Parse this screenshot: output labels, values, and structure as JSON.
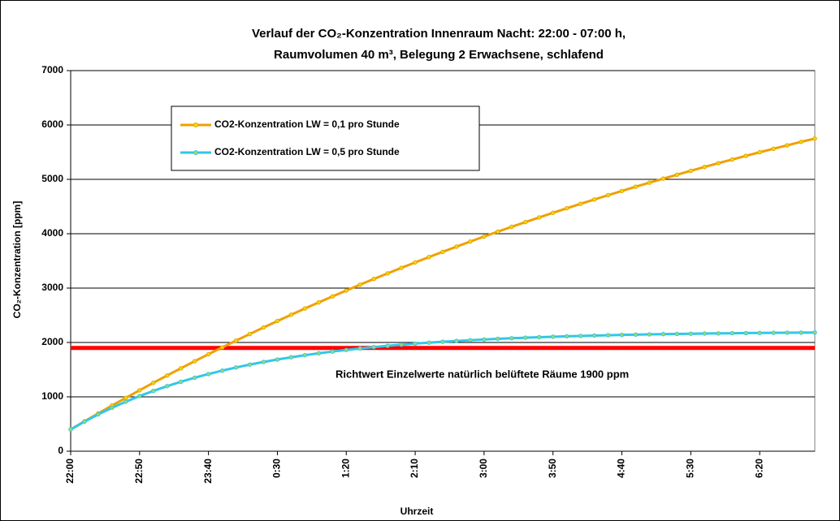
{
  "chart_data": {
    "type": "line",
    "title_lines": [
      "Verlauf der CO₂-Konzentration Innenraum Nacht: 22:00 - 07:00 h,",
      "Raumvolumen 40 m³, Belegung 2 Erwachsene, schlafend"
    ],
    "x_label": "Uhrzeit",
    "y_label": "CO₂-Konzentration [ppm]",
    "categories": [
      "22:00",
      null,
      null,
      null,
      null,
      "22:50",
      null,
      null,
      null,
      null,
      "23:40",
      null,
      null,
      null,
      null,
      "0:30",
      null,
      null,
      null,
      null,
      "1:20",
      null,
      null,
      null,
      null,
      "2:10",
      null,
      null,
      null,
      null,
      "3:00",
      null,
      null,
      null,
      null,
      "3:50",
      null,
      null,
      null,
      null,
      "4:40",
      null,
      null,
      null,
      null,
      "5:30",
      null,
      null,
      null,
      null,
      "6:20",
      null,
      null,
      null,
      null
    ],
    "series": [
      {
        "name": "CO2-Konzentration LW = 0,1 pro Stunde",
        "color": "#f0a000",
        "marker_color": "#e8e000",
        "values": [
          400,
          549,
          696,
          840,
          981,
          1121,
          1258,
          1393,
          1525,
          1656,
          1784,
          1910,
          2034,
          2156,
          2276,
          2394,
          2510,
          2625,
          2737,
          2847,
          2956,
          3063,
          3168,
          3271,
          3372,
          3472,
          3571,
          3667,
          3762,
          3856,
          3948,
          4038,
          4127,
          4214,
          4300,
          4385,
          4468,
          4550,
          4630,
          4709,
          4787,
          4864,
          4939,
          5013,
          5085,
          5157,
          5228,
          5297,
          5365,
          5432,
          5498,
          5562,
          5626,
          5689,
          5750
        ]
      },
      {
        "name": "CO2-Konzentration LW = 0,5 pro Stunde",
        "color": "#30c8e8",
        "marker_color": "#a8d860",
        "values": [
          400,
          544,
          677,
          799,
          911,
          1014,
          1109,
          1197,
          1277,
          1351,
          1419,
          1482,
          1540,
          1593,
          1642,
          1686,
          1728,
          1766,
          1801,
          1833,
          1862,
          1890,
          1915,
          1938,
          1959,
          1979,
          1996,
          2013,
          2028,
          2042,
          2055,
          2067,
          2078,
          2088,
          2097,
          2105,
          2113,
          2120,
          2127,
          2133,
          2139,
          2144,
          2149,
          2153,
          2157,
          2161,
          2164,
          2167,
          2170,
          2173,
          2175,
          2177,
          2179,
          2181,
          2183
        ]
      }
    ],
    "reference_line": {
      "value": 1900,
      "color": "#ff0000",
      "label": "Richtwert Einzelwerte natürlich belüftete Räume 1900 ppm"
    },
    "ylim": [
      0,
      7000
    ],
    "yticks": [
      0,
      1000,
      2000,
      3000,
      4000,
      5000,
      6000,
      7000
    ],
    "grid": true
  }
}
